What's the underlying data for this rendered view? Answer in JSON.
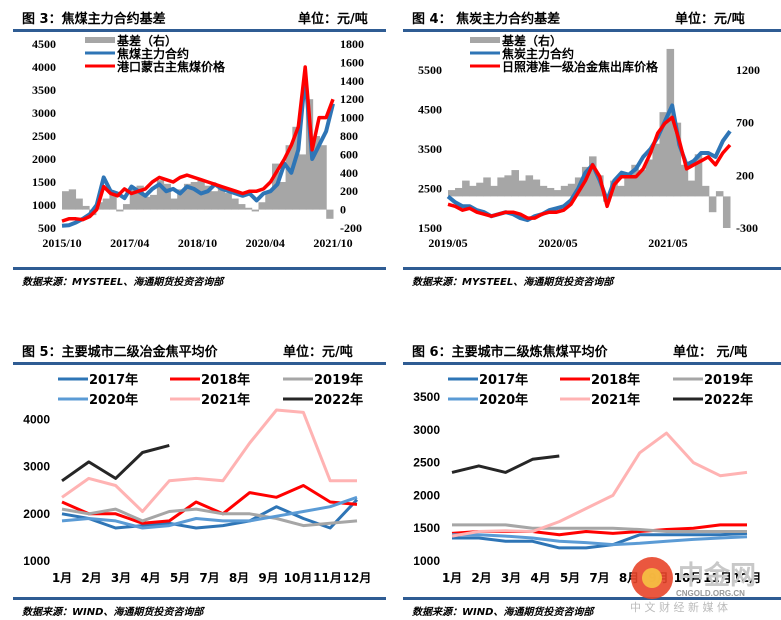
{
  "panels": [
    {
      "title": "图 3：焦煤主力合约基差",
      "unit": "单位：元/吨",
      "source": "数据来源：MYSTEEL、海通期货投资咨询部"
    },
    {
      "title": "图 4：    焦炭主力合约基差",
      "unit": "单位：元/吨",
      "source": "数据来源：MYSTEEL、海通期货投资咨询部"
    },
    {
      "title": "图 5：主要城市二级冶金焦平均价",
      "unit": "单位：元/吨",
      "source": "数据来源：WIND、海通期货投资咨询部"
    },
    {
      "title": "图 6：主要城市二级炼焦煤平均价",
      "unit": "单位： 元/吨",
      "source": "数据来源：WIND、海通期货投资咨询部"
    }
  ],
  "watermark": {
    "brand": "中金网",
    "sub": "中 文 财 经 新 媒 体",
    "url": "CNGOLD.ORG.CN",
    "overlay": "海通期货"
  },
  "chart_data": [
    {
      "type": "line",
      "title": "焦煤主力合约基差",
      "x_ticks": [
        "2015/10",
        "2017/04",
        "2018/10",
        "2020/04",
        "2021/10"
      ],
      "y_left": {
        "ticks": [
          500,
          1000,
          1500,
          2000,
          2500,
          3000,
          3500,
          4000,
          4500
        ],
        "range": [
          500,
          4500
        ]
      },
      "y_right": {
        "ticks": [
          -200,
          0,
          200,
          400,
          600,
          800,
          1000,
          1200,
          1400,
          1600,
          1800
        ],
        "range": [
          -200,
          1800
        ]
      },
      "legend": [
        "基差（右）",
        "焦煤主力合约",
        "港口蒙古主焦煤价格"
      ],
      "series": [
        {
          "name": "基差（右）",
          "axis": "right",
          "type": "area",
          "color": "#a6a6a6",
          "values": [
            200,
            220,
            120,
            40,
            -60,
            80,
            120,
            180,
            -20,
            60,
            220,
            260,
            140,
            160,
            320,
            280,
            120,
            220,
            280,
            300,
            320,
            260,
            200,
            240,
            180,
            120,
            60,
            20,
            -20,
            80,
            200,
            500,
            300,
            700,
            900,
            600,
            1200,
            800,
            700,
            -100
          ]
        },
        {
          "name": "焦煤主力合约",
          "axis": "left",
          "type": "line",
          "color": "#2e75b6",
          "values": [
            550,
            560,
            620,
            700,
            800,
            1000,
            1600,
            1300,
            1250,
            1150,
            1400,
            1300,
            1200,
            1350,
            1450,
            1300,
            1350,
            1250,
            1400,
            1350,
            1250,
            1300,
            1450,
            1350,
            1300,
            1250,
            1200,
            1250,
            1100,
            1250,
            1300,
            1450,
            1900,
            1700,
            2200,
            3800,
            2000,
            2300,
            2600,
            3200
          ]
        },
        {
          "name": "港口蒙古主焦煤价格",
          "axis": "left",
          "type": "line",
          "color": "#ff0000",
          "values": [
            650,
            700,
            700,
            680,
            750,
            900,
            1400,
            1250,
            1200,
            1350,
            1250,
            1300,
            1350,
            1500,
            1600,
            1550,
            1500,
            1600,
            1650,
            1600,
            1550,
            1500,
            1450,
            1400,
            1350,
            1300,
            1250,
            1300,
            1300,
            1350,
            1500,
            1750,
            2000,
            2300,
            2700,
            4000,
            2200,
            2900,
            2900,
            3300
          ]
        }
      ]
    },
    {
      "type": "line",
      "title": "焦炭主力合约基差",
      "x_ticks": [
        "2019/05",
        "2020/05",
        "2021/05"
      ],
      "y_left": {
        "ticks": [
          1500,
          2500,
          3500,
          4500,
          5500
        ],
        "range": [
          1500,
          5500
        ]
      },
      "y_right": {
        "ticks": [
          -300,
          200,
          700,
          1200
        ],
        "range": [
          -300,
          1200
        ]
      },
      "legend": [
        "基差（右）",
        "焦炭主力合约",
        "日照港准一级冶金焦出库价格"
      ],
      "series": [
        {
          "name": "基差（右）",
          "axis": "right",
          "type": "area",
          "color": "#a6a6a6",
          "values": [
            60,
            80,
            150,
            100,
            130,
            180,
            100,
            180,
            200,
            250,
            150,
            200,
            160,
            100,
            80,
            60,
            100,
            120,
            180,
            280,
            380,
            200,
            -50,
            150,
            100,
            200,
            300,
            250,
            350,
            500,
            800,
            1400,
            700,
            300,
            150,
            400,
            100,
            -150,
            50,
            -300
          ]
        },
        {
          "name": "焦炭主力合约",
          "axis": "left",
          "type": "line",
          "color": "#2e75b6",
          "values": [
            2300,
            2150,
            2050,
            2050,
            1950,
            1900,
            1800,
            1850,
            1900,
            1850,
            1750,
            1700,
            1800,
            1850,
            1950,
            2000,
            2050,
            2200,
            2500,
            2900,
            3100,
            2700,
            2200,
            2700,
            2900,
            2850,
            3000,
            3300,
            3500,
            3800,
            4200,
            4600,
            3600,
            3100,
            3200,
            3400,
            3400,
            3300,
            3700,
            3950
          ]
        },
        {
          "name": "日照港准一级冶金焦出库价格",
          "axis": "left",
          "type": "line",
          "color": "#ff0000",
          "values": [
            2100,
            2050,
            1950,
            2000,
            1900,
            1850,
            1800,
            1850,
            1900,
            1900,
            1850,
            1750,
            1750,
            1850,
            1900,
            1900,
            1950,
            2100,
            2400,
            2700,
            3100,
            2800,
            2050,
            2600,
            2800,
            2800,
            2800,
            3000,
            3400,
            3900,
            4150,
            4300,
            3700,
            3000,
            3100,
            3200,
            3300,
            3100,
            3400,
            3600
          ]
        }
      ]
    },
    {
      "type": "line",
      "title": "主要城市二级冶金焦平均价",
      "x_ticks": [
        "1月",
        "2月",
        "3月",
        "4月",
        "5月",
        "7月",
        "8月",
        "9月",
        "10月",
        "11月",
        "12月"
      ],
      "y_left": {
        "ticks": [
          1000,
          2000,
          3000,
          4000
        ],
        "range": [
          1000,
          4200
        ]
      },
      "legend": [
        "2017年",
        "2018年",
        "2019年",
        "2020年",
        "2021年",
        "2022年"
      ],
      "series": [
        {
          "name": "2017年",
          "color": "#2e75b6",
          "values": [
            2000,
            1900,
            1700,
            1750,
            1800,
            1700,
            1750,
            1850,
            2150,
            1900,
            1700,
            2300
          ]
        },
        {
          "name": "2018年",
          "color": "#ff0000",
          "values": [
            2250,
            2000,
            2000,
            1800,
            1850,
            2250,
            2000,
            2450,
            2350,
            2600,
            2250,
            2200
          ]
        },
        {
          "name": "2019年",
          "color": "#a6a6a6",
          "values": [
            2100,
            2000,
            2100,
            1850,
            2050,
            2100,
            2000,
            2000,
            1900,
            1750,
            1800,
            1850
          ]
        },
        {
          "name": "2020年",
          "color": "#5b9bd5",
          "values": [
            1850,
            1900,
            1850,
            1700,
            1750,
            1900,
            1850,
            1850,
            1950,
            2050,
            2150,
            2350
          ]
        },
        {
          "name": "2021年",
          "color": "#ffb3b3",
          "values": [
            2350,
            2750,
            2600,
            2050,
            2700,
            2750,
            2700,
            3500,
            4200,
            4150,
            2700,
            2700
          ]
        },
        {
          "name": "2022年",
          "color": "#262626",
          "values": [
            2700,
            3100,
            2750,
            3300,
            3450
          ]
        }
      ]
    },
    {
      "type": "line",
      "title": "主要城市二级炼焦煤平均价",
      "x_ticks": [
        "1月",
        "2月",
        "3月",
        "4月",
        "5月",
        "7月",
        "8月",
        "9月",
        "10月",
        "11月",
        "12月"
      ],
      "y_left": {
        "ticks": [
          1000,
          1500,
          2000,
          2500,
          3000,
          3500
        ],
        "range": [
          1000,
          3500
        ]
      },
      "legend": [
        "2017年",
        "2018年",
        "2019年",
        "2020年",
        "2021年",
        "2022年"
      ],
      "series": [
        {
          "name": "2017年",
          "color": "#2e75b6",
          "values": [
            1350,
            1350,
            1300,
            1300,
            1200,
            1200,
            1250,
            1400,
            1400,
            1400,
            1400,
            1420
          ]
        },
        {
          "name": "2018年",
          "color": "#ff0000",
          "values": [
            1420,
            1450,
            1450,
            1450,
            1400,
            1450,
            1420,
            1450,
            1480,
            1500,
            1550,
            1550
          ]
        },
        {
          "name": "2019年",
          "color": "#a6a6a6",
          "values": [
            1550,
            1550,
            1550,
            1500,
            1500,
            1500,
            1500,
            1480,
            1450,
            1450,
            1450,
            1450
          ]
        },
        {
          "name": "2020年",
          "color": "#5b9bd5",
          "values": [
            1400,
            1400,
            1380,
            1350,
            1300,
            1280,
            1250,
            1270,
            1300,
            1330,
            1350,
            1370
          ]
        },
        {
          "name": "2021年",
          "color": "#ffb3b3",
          "values": [
            1380,
            1450,
            1460,
            1450,
            1600,
            1800,
            2000,
            2650,
            2950,
            2500,
            2300,
            2350
          ]
        },
        {
          "name": "2022年",
          "color": "#262626",
          "values": [
            2350,
            2450,
            2350,
            2550,
            2600
          ]
        }
      ]
    }
  ]
}
